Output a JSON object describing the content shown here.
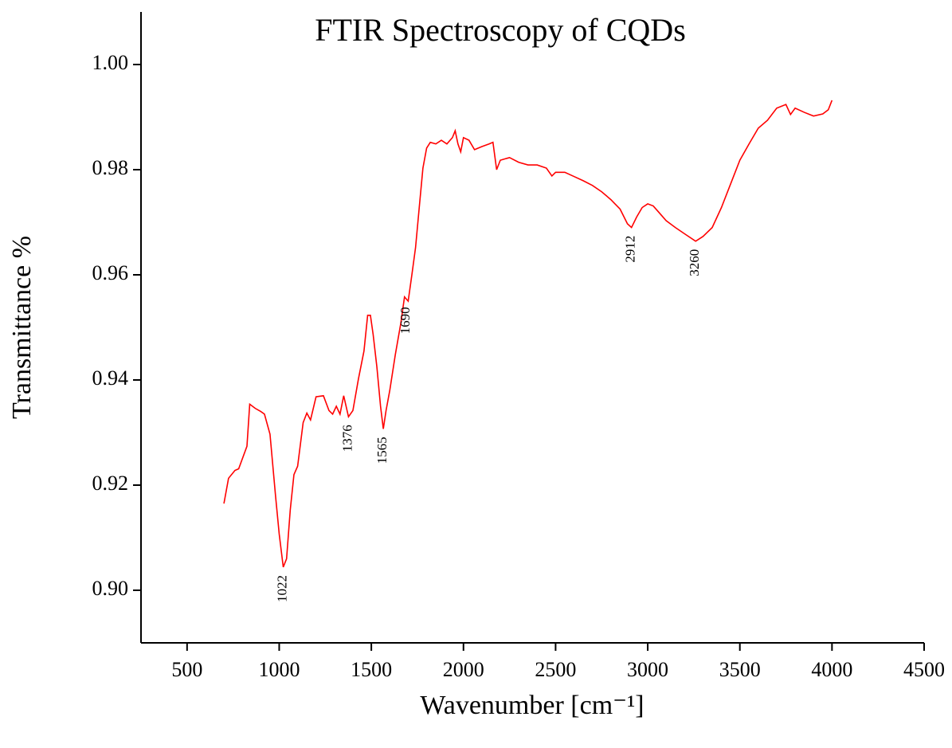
{
  "chart_data": {
    "type": "line",
    "title": "FTIR Spectroscopy of CQDs",
    "x_label": "Wavenumber [cm⁻¹]",
    "y_label": "Transmittance %",
    "xlim": [
      250,
      4500
    ],
    "ylim": [
      0.89,
      1.01
    ],
    "xticks": [
      500,
      1000,
      1500,
      2000,
      2500,
      3000,
      3500,
      4000,
      4500
    ],
    "yticks": [
      {
        "value": 0.9,
        "label": "0.90"
      },
      0.92,
      0.94,
      0.96,
      0.98,
      {
        "value": 1.0,
        "label": "1.00"
      }
    ],
    "x": [
      700,
      725,
      760,
      780,
      825,
      840,
      870,
      900,
      920,
      950,
      980,
      1000,
      1022,
      1040,
      1060,
      1080,
      1100,
      1130,
      1150,
      1170,
      1200,
      1240,
      1270,
      1290,
      1310,
      1330,
      1350,
      1376,
      1400,
      1430,
      1460,
      1480,
      1495,
      1510,
      1530,
      1550,
      1565,
      1580,
      1600,
      1630,
      1660,
      1680,
      1690,
      1700,
      1720,
      1740,
      1760,
      1780,
      1800,
      1820,
      1850,
      1880,
      1910,
      1940,
      1955,
      1970,
      1985,
      2000,
      2030,
      2060,
      2100,
      2140,
      2160,
      2180,
      2200,
      2250,
      2300,
      2350,
      2400,
      2450,
      2480,
      2500,
      2550,
      2600,
      2650,
      2700,
      2750,
      2800,
      2850,
      2890,
      2912,
      2940,
      2970,
      3000,
      3030,
      3060,
      3100,
      3150,
      3200,
      3260,
      3300,
      3350,
      3400,
      3450,
      3500,
      3550,
      3600,
      3650,
      3700,
      3750,
      3775,
      3800,
      3850,
      3900,
      3950,
      3980,
      4000
    ],
    "series": [
      {
        "name": "CQDs",
        "color": "#ff0000",
        "values": [
          0.9165,
          0.9213,
          0.9228,
          0.9231,
          0.9274,
          0.9354,
          0.9346,
          0.934,
          0.9335,
          0.9297,
          0.918,
          0.9107,
          0.9044,
          0.906,
          0.9153,
          0.922,
          0.9236,
          0.9319,
          0.9337,
          0.9324,
          0.9368,
          0.937,
          0.9342,
          0.9335,
          0.935,
          0.9335,
          0.937,
          0.933,
          0.9342,
          0.9402,
          0.9455,
          0.9523,
          0.9523,
          0.9486,
          0.9425,
          0.935,
          0.9307,
          0.9342,
          0.938,
          0.9448,
          0.9508,
          0.9558,
          0.9554,
          0.955,
          0.96,
          0.9652,
          0.9728,
          0.9803,
          0.9841,
          0.9852,
          0.9849,
          0.9856,
          0.9849,
          0.9861,
          0.9874,
          0.9849,
          0.9834,
          0.9861,
          0.9856,
          0.9838,
          0.9844,
          0.9849,
          0.9852,
          0.98,
          0.9818,
          0.9823,
          0.9814,
          0.9809,
          0.9809,
          0.9803,
          0.9788,
          0.9795,
          0.9795,
          0.9787,
          0.9779,
          0.977,
          0.9758,
          0.9743,
          0.9725,
          0.9697,
          0.969,
          0.971,
          0.9728,
          0.9735,
          0.9731,
          0.9719,
          0.9703,
          0.969,
          0.9678,
          0.9664,
          0.9673,
          0.969,
          0.9728,
          0.9773,
          0.9818,
          0.9849,
          0.9879,
          0.9894,
          0.9917,
          0.9924,
          0.9905,
          0.9917,
          0.9909,
          0.9902,
          0.9906,
          0.9914,
          0.9932
        ]
      }
    ],
    "annotations": [
      {
        "x": 1022,
        "label": "1022"
      },
      {
        "x": 1376,
        "label": "1376"
      },
      {
        "x": 1565,
        "label": "1565"
      },
      {
        "x": 1690,
        "label": "1690"
      },
      {
        "x": 2912,
        "label": "2912"
      },
      {
        "x": 3260,
        "label": "3260"
      }
    ]
  }
}
